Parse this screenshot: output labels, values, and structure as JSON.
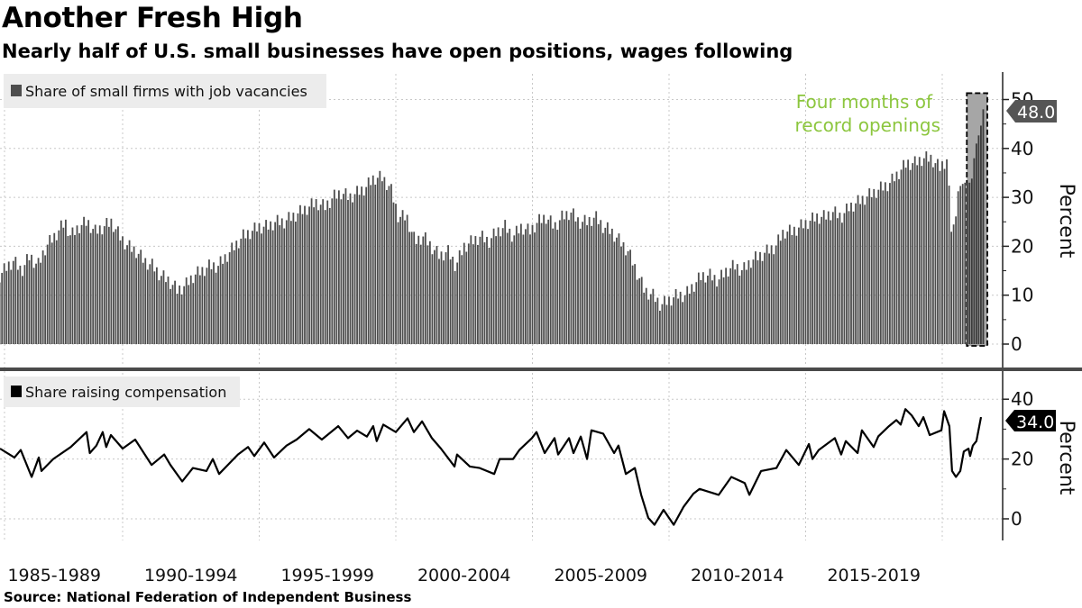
{
  "header": {
    "title": "Another Fresh High",
    "subtitle": "Nearly half of U.S. small businesses have open positions, wages following"
  },
  "footer": {
    "source": "Source: National Federation of Independent Business"
  },
  "colors": {
    "bars": "#4d4d4d",
    "line": "#000000",
    "annotation": "#8cc63e",
    "highlight": "#a6a6a6"
  },
  "chart_data": [
    {
      "type": "bar",
      "panel": "top",
      "legend": "Share of small firms with job vacancies",
      "legend_placement": "top-left",
      "ylabel": "Percent",
      "ylim": [
        0,
        50
      ],
      "yticks": [
        0,
        10,
        20,
        30,
        40,
        50
      ],
      "grid": true,
      "frequency": "monthly",
      "last_value_label": "48.0",
      "annotation": {
        "lines": [
          "Four months of",
          "record openings"
        ],
        "highlight_range": [
          2020.9,
          2021.65
        ]
      },
      "x": [
        1985.5,
        1985.8,
        1986.0,
        1986.3,
        1986.6,
        1986.9,
        1987.2,
        1987.5,
        1987.9,
        1988.1,
        1988.4,
        1988.7,
        1989.0,
        1989.3,
        1989.6,
        1989.9,
        1990.2,
        1990.5,
        1990.8,
        1991.1,
        1991.4,
        1991.7,
        1992.0,
        1992.3,
        1992.6,
        1992.9,
        1993.2,
        1993.5,
        1993.8,
        1994.1,
        1994.4,
        1994.7,
        1995.0,
        1995.3,
        1995.6,
        1995.9,
        1996.2,
        1996.5,
        1996.8,
        1997.1,
        1997.4,
        1997.7,
        1998.0,
        1998.3,
        1998.6,
        1998.9,
        1999.2,
        1999.5,
        1999.8,
        2000.1,
        2000.4,
        2000.7,
        2001.0,
        2001.3,
        2001.6,
        2001.9,
        2002.2,
        2002.5,
        2002.8,
        2003.1,
        2003.4,
        2003.7,
        2004.0,
        2004.3,
        2004.6,
        2004.9,
        2005.2,
        2005.5,
        2005.8,
        2006.1,
        2006.4,
        2006.7,
        2007.0,
        2007.3,
        2007.6,
        2007.9,
        2008.2,
        2008.5,
        2008.8,
        2009.1,
        2009.4,
        2009.7,
        2010.0,
        2010.3,
        2010.6,
        2010.9,
        2011.2,
        2011.5,
        2011.8,
        2012.1,
        2012.4,
        2012.7,
        2013.0,
        2013.3,
        2013.6,
        2013.9,
        2014.2,
        2014.5,
        2014.8,
        2015.1,
        2015.4,
        2015.7,
        2016.0,
        2016.3,
        2016.6,
        2016.9,
        2017.2,
        2017.5,
        2017.8,
        2018.1,
        2018.4,
        2018.7,
        2019.0,
        2019.3,
        2019.6,
        2019.9,
        2020.2,
        2020.3,
        2020.4,
        2020.6,
        2020.8,
        2021.0,
        2021.1,
        2021.2,
        2021.3,
        2021.4,
        2021.5
      ],
      "values": [
        14,
        16,
        17,
        15,
        18,
        16,
        20,
        22,
        25,
        22,
        24,
        25,
        23,
        24,
        25,
        22,
        20,
        19,
        17,
        16,
        14,
        13,
        11,
        12,
        14,
        15,
        16,
        16,
        18,
        20,
        22,
        23,
        24,
        24,
        25,
        25,
        26,
        27,
        28,
        29,
        28,
        30,
        31,
        30,
        31,
        32,
        34,
        34,
        32,
        26,
        26,
        21,
        22,
        20,
        18,
        19,
        16,
        20,
        21,
        22,
        21,
        23,
        24,
        22,
        24,
        23,
        25,
        26,
        24,
        26,
        27,
        25,
        25,
        26,
        24,
        23,
        21,
        19,
        15,
        11,
        10,
        8,
        9,
        10,
        10,
        12,
        14,
        14,
        13,
        15,
        16,
        15,
        17,
        18,
        19,
        20,
        23,
        23,
        24,
        25,
        26,
        26,
        27,
        26,
        28,
        29,
        30,
        31,
        32,
        33,
        35,
        37,
        37,
        38,
        38,
        36,
        38,
        24,
        23,
        32,
        33,
        33,
        34,
        40,
        42,
        44,
        48
      ]
    },
    {
      "type": "line",
      "panel": "bottom",
      "legend": "Share raising compensation",
      "legend_placement": "top-left",
      "ylabel": "Percent",
      "ylim": [
        -5,
        45
      ],
      "yticks": [
        0,
        20,
        40
      ],
      "grid": true,
      "last_value_label": "34.0",
      "x": [
        1985.51,
        1986.04,
        1986.27,
        1986.67,
        1986.93,
        1987.03,
        1987.46,
        1988.1,
        1988.68,
        1988.8,
        1989.04,
        1989.27,
        1989.4,
        1989.57,
        1990.0,
        1990.46,
        1991.06,
        1991.52,
        1991.75,
        1992.18,
        1992.57,
        1993.07,
        1993.3,
        1993.53,
        1993.9,
        1994.22,
        1994.59,
        1994.82,
        1995.18,
        1995.54,
        1996.0,
        1996.37,
        1996.83,
        1997.29,
        1997.89,
        1998.25,
        1998.58,
        1998.94,
        1999.17,
        1999.3,
        1999.54,
        2000.0,
        2000.43,
        2000.66,
        2000.96,
        2001.32,
        2001.65,
        2002.15,
        2002.24,
        2002.71,
        2003.07,
        2003.6,
        2003.8,
        2004.29,
        2004.52,
        2004.98,
        2005.15,
        2005.45,
        2005.81,
        2005.94,
        2006.34,
        2006.5,
        2006.77,
        2007.0,
        2007.16,
        2007.59,
        2007.99,
        2008.15,
        2008.42,
        2008.75,
        2008.98,
        2009.24,
        2009.47,
        2009.8,
        2010.17,
        2010.53,
        2010.89,
        2011.12,
        2011.82,
        2012.28,
        2012.77,
        2012.94,
        2013.37,
        2013.93,
        2014.29,
        2014.75,
        2015.12,
        2015.25,
        2015.48,
        2016.07,
        2016.3,
        2016.47,
        2016.9,
        2017.06,
        2017.49,
        2017.66,
        2018.05,
        2018.32,
        2018.48,
        2018.65,
        2018.88,
        2019.14,
        2019.31,
        2019.54,
        2019.97,
        2020.07,
        2020.26,
        2020.36,
        2020.5,
        2020.66,
        2020.79,
        2020.96,
        2021.02,
        2021.12,
        2021.25,
        2021.42
      ],
      "values": [
        23.5,
        20.5,
        23,
        14,
        20.5,
        16,
        20,
        24,
        29,
        22,
        24.5,
        29,
        24,
        28,
        23.5,
        26.5,
        18,
        21.5,
        18,
        12.5,
        17,
        16,
        20,
        15,
        18.5,
        21.5,
        24,
        21,
        25.5,
        20.5,
        24.5,
        26.5,
        30,
        26.5,
        31,
        27,
        29.5,
        27.5,
        31,
        26,
        31.5,
        29,
        33.6,
        29,
        32.6,
        27,
        23.5,
        17.5,
        21.5,
        17.5,
        17,
        15,
        20,
        20,
        23,
        27,
        29,
        22,
        27,
        21.5,
        27,
        22,
        27.5,
        20,
        29.6,
        28.5,
        22,
        24.5,
        15,
        17,
        8,
        0.3,
        -2,
        3,
        -2,
        4,
        8.4,
        10,
        8,
        14,
        12,
        8,
        16,
        17,
        23,
        18,
        25,
        20,
        23,
        27,
        21.5,
        26,
        22,
        29.6,
        24,
        27.6,
        31,
        33,
        31.5,
        36.7,
        34.6,
        31,
        34,
        28,
        29.6,
        36,
        31,
        16,
        14,
        16,
        22.5,
        23.5,
        21,
        24.5,
        26,
        34
      ]
    }
  ],
  "x_axis": {
    "tick_labels": [
      "1985-1989",
      "1990-1994",
      "1995-1999",
      "2000-2004",
      "2005-2009",
      "2010-2014",
      "2015-2019"
    ],
    "period_starts": [
      1985,
      1990,
      1995,
      2000,
      2005,
      2010,
      2015
    ]
  }
}
